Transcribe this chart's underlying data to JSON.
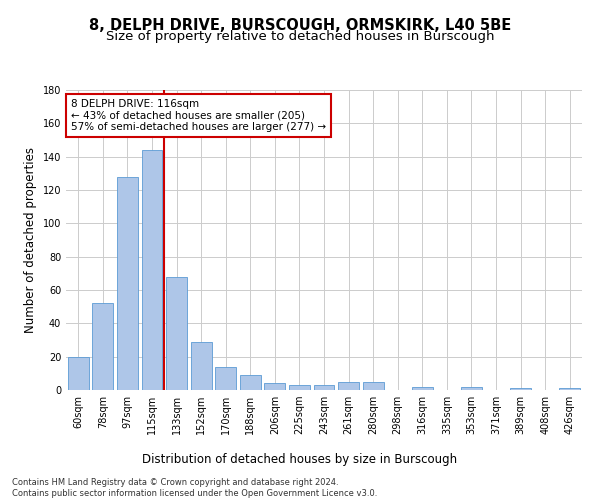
{
  "title1": "8, DELPH DRIVE, BURSCOUGH, ORMSKIRK, L40 5BE",
  "title2": "Size of property relative to detached houses in Burscough",
  "xlabel": "Distribution of detached houses by size in Burscough",
  "ylabel": "Number of detached properties",
  "categories": [
    "60sqm",
    "78sqm",
    "97sqm",
    "115sqm",
    "133sqm",
    "152sqm",
    "170sqm",
    "188sqm",
    "206sqm",
    "225sqm",
    "243sqm",
    "261sqm",
    "280sqm",
    "298sqm",
    "316sqm",
    "335sqm",
    "353sqm",
    "371sqm",
    "389sqm",
    "408sqm",
    "426sqm"
  ],
  "values": [
    20,
    52,
    128,
    144,
    68,
    29,
    14,
    9,
    4,
    3,
    3,
    5,
    5,
    0,
    2,
    0,
    2,
    0,
    1,
    0,
    1
  ],
  "bar_color": "#aec6e8",
  "bar_edge_color": "#5b9bd5",
  "vline_x": 3.5,
  "vline_color": "#cc0000",
  "annotation_line1": "8 DELPH DRIVE: 116sqm",
  "annotation_line2": "← 43% of detached houses are smaller (205)",
  "annotation_line3": "57% of semi-detached houses are larger (277) →",
  "annotation_box_color": "#ffffff",
  "annotation_box_edge": "#cc0000",
  "ylim": [
    0,
    180
  ],
  "yticks": [
    0,
    20,
    40,
    60,
    80,
    100,
    120,
    140,
    160,
    180
  ],
  "footer": "Contains HM Land Registry data © Crown copyright and database right 2024.\nContains public sector information licensed under the Open Government Licence v3.0.",
  "bg_color": "#ffffff",
  "grid_color": "#cccccc",
  "title1_fontsize": 10.5,
  "title2_fontsize": 9.5,
  "xlabel_fontsize": 8.5,
  "ylabel_fontsize": 8.5,
  "tick_fontsize": 7,
  "annotation_fontsize": 7.5,
  "footer_fontsize": 6
}
